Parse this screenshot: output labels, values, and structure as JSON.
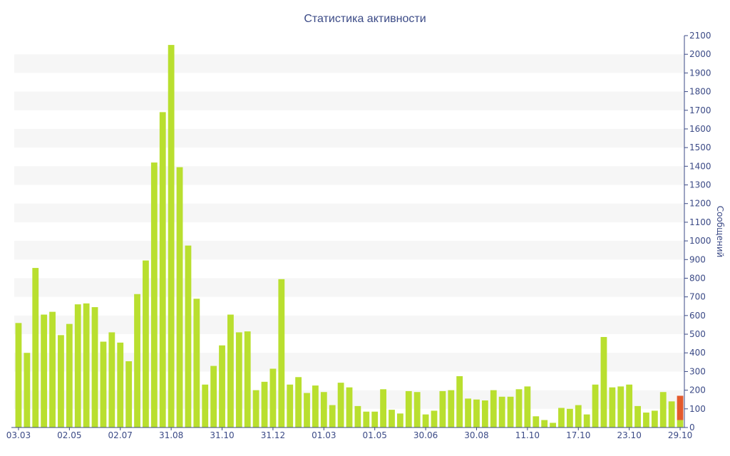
{
  "colors": {
    "bar": "#b9df2f",
    "bar_highlight": "#e45a2c",
    "axis": "#3b4a86",
    "band": "#f6f6f6",
    "text": "#3b4a86"
  },
  "chart_data": {
    "type": "bar",
    "title": "Статистика активности",
    "ylabel": "Сообщений",
    "xlabel": "",
    "ylim": [
      0,
      2100
    ],
    "ytick_step": 100,
    "y_axis_position": "right",
    "grid": "alternating horizontal bands",
    "x_tick_labels": [
      {
        "index": 0,
        "label": "03.03"
      },
      {
        "index": 6,
        "label": "02.05"
      },
      {
        "index": 12,
        "label": "02.07"
      },
      {
        "index": 18,
        "label": "31.08"
      },
      {
        "index": 24,
        "label": "31.10"
      },
      {
        "index": 30,
        "label": "31.12"
      },
      {
        "index": 36,
        "label": "01.03"
      },
      {
        "index": 42,
        "label": "01.05"
      },
      {
        "index": 48,
        "label": "30.06"
      },
      {
        "index": 54,
        "label": "30.08"
      },
      {
        "index": 60,
        "label": "11.10"
      },
      {
        "index": 66,
        "label": "17.10"
      },
      {
        "index": 72,
        "label": "23.10"
      },
      {
        "index": 78,
        "label": "29.10"
      }
    ],
    "series": [
      {
        "values": [
          560,
          400,
          855,
          605,
          620,
          495,
          555,
          660,
          665,
          645,
          460,
          510,
          455,
          355,
          715,
          895,
          1420,
          1690,
          2050,
          1395,
          975,
          690,
          230,
          330,
          440,
          605,
          510,
          515,
          200,
          245,
          315,
          795,
          230,
          270,
          185,
          225,
          190,
          120,
          240,
          215,
          115,
          85,
          85,
          205,
          95,
          75,
          195,
          190,
          70,
          90,
          195,
          200,
          275,
          155,
          150,
          145,
          200,
          165,
          165,
          205,
          220,
          60,
          40,
          25,
          105,
          100,
          120,
          70,
          230,
          485,
          215,
          220,
          230,
          115,
          80,
          90,
          190,
          140,
          170
        ]
      }
    ],
    "last_bar_split": {
      "lower": 40,
      "upper": 130
    }
  }
}
